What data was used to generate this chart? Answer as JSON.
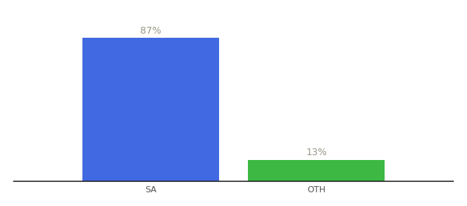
{
  "categories": [
    "SA",
    "OTH"
  ],
  "values": [
    87,
    13
  ],
  "bar_colors": [
    "#4169e1",
    "#3cb843"
  ],
  "label_texts": [
    "87%",
    "13%"
  ],
  "ylim": [
    0,
    100
  ],
  "background_color": "#ffffff",
  "label_fontsize": 10,
  "tick_fontsize": 9,
  "label_color": "#999988",
  "bar_width": 0.28,
  "x_positions": [
    0.33,
    0.67
  ],
  "xlim": [
    0.05,
    0.95
  ]
}
